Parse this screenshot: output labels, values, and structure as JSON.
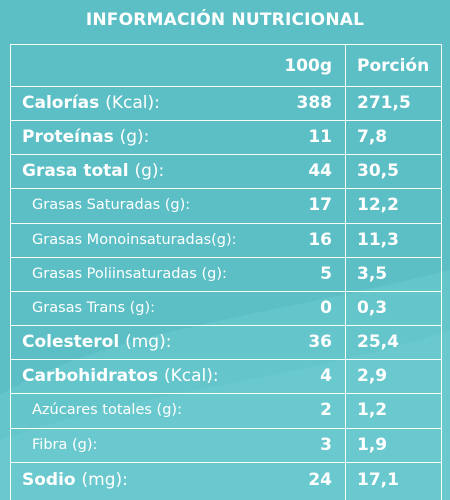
{
  "title": "INFORMACIÓN NUTRICIONAL",
  "columns": {
    "per100": "100g",
    "portion": "Porción"
  },
  "rows": [
    {
      "name": "Calorías",
      "unit": "(Kcal):",
      "per100": "388",
      "portion": "271,5",
      "level": "main"
    },
    {
      "name": "Proteínas",
      "unit": "(g):",
      "per100": "11",
      "portion": "7,8",
      "level": "main"
    },
    {
      "name": "Grasa total",
      "unit": "(g):",
      "per100": "44",
      "portion": "30,5",
      "level": "main"
    },
    {
      "name": "Grasas Saturadas (g):",
      "unit": "",
      "per100": "17",
      "portion": "12,2",
      "level": "sub"
    },
    {
      "name": "Grasas Monoinsaturadas(g):",
      "unit": "",
      "per100": "16",
      "portion": "11,3",
      "level": "sub"
    },
    {
      "name": "Grasas Poliinsaturadas (g):",
      "unit": "",
      "per100": "5",
      "portion": "3,5",
      "level": "sub"
    },
    {
      "name": "Grasas Trans (g):",
      "unit": "",
      "per100": "0",
      "portion": "0,3",
      "level": "sub"
    },
    {
      "name": "Colesterol",
      "unit": "(mg):",
      "per100": "36",
      "portion": "25,4",
      "level": "main"
    },
    {
      "name": "Carbohidratos",
      "unit": "(Kcal):",
      "per100": "4",
      "portion": "2,9",
      "level": "main"
    },
    {
      "name": "Azúcares totales (g):",
      "unit": "",
      "per100": "2",
      "portion": "1,2",
      "level": "sub"
    },
    {
      "name": "Fibra (g):",
      "unit": "",
      "per100": "3",
      "portion": "1,9",
      "level": "sub"
    },
    {
      "name": "Sodio",
      "unit": "(mg):",
      "per100": "24",
      "portion": "17,1",
      "level": "main"
    }
  ],
  "colors": {
    "background": "#5bbfc5",
    "wave": "#6ccbd0",
    "text": "#ffffff",
    "lines": "#ffffff"
  }
}
